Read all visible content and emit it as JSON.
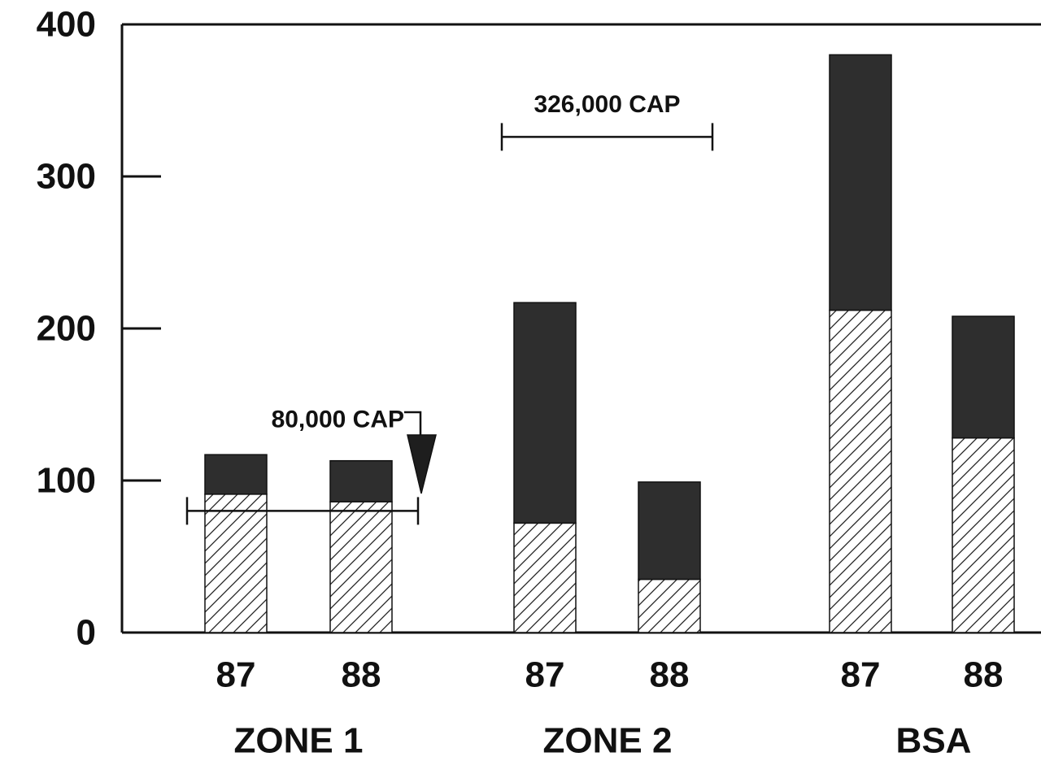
{
  "chart_data": {
    "type": "bar",
    "stacked": true,
    "title": "",
    "xlabel": "",
    "ylabel": "",
    "ylim": [
      0,
      400
    ],
    "yticks": [
      "0",
      "100",
      "200",
      "300",
      "400"
    ],
    "groups": [
      "ZONE 1",
      "ZONE 2",
      "BSA"
    ],
    "categories": [
      "87",
      "88",
      "87",
      "88",
      "87",
      "88"
    ],
    "group_index": [
      0,
      0,
      1,
      1,
      2,
      2
    ],
    "series": [
      {
        "values": [
          91,
          86,
          72,
          35,
          212,
          128
        ],
        "pattern": "hatched"
      },
      {
        "values": [
          26,
          27,
          145,
          64,
          168,
          80
        ],
        "pattern": "solid"
      }
    ],
    "colors": {
      "solid": "#2e2e2e",
      "hatch": "#222222",
      "axis": "#111111"
    },
    "grid": false,
    "annotations": [
      {
        "text": "80,000 CAP",
        "value": 80,
        "from_bar": 0,
        "to_bar": 1,
        "arrow": true
      },
      {
        "text": "326,000 CAP",
        "value": 326,
        "from_bar": 2,
        "to_bar": 3,
        "arrow": false
      }
    ]
  }
}
